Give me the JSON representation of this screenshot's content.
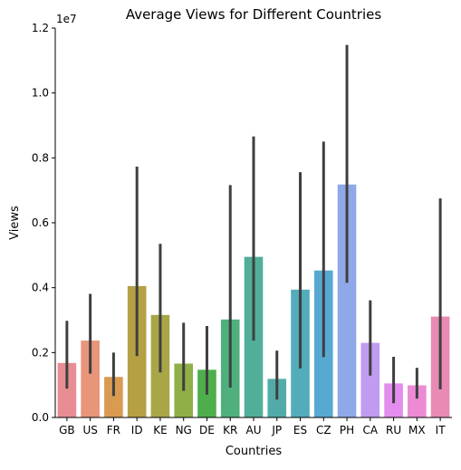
{
  "chart_data": {
    "type": "bar",
    "title": "Average Views for Different Countries",
    "xlabel": "Countries",
    "ylabel": "Views",
    "y_scale_label": "1e7",
    "ylim": [
      0,
      1.2
    ],
    "y_ticks": [
      "0.0",
      "0.2",
      "0.4",
      "0.6",
      "0.8",
      "1.0",
      "1.2"
    ],
    "y_tick_values": [
      0,
      0.2,
      0.4,
      0.6,
      0.8,
      1.0,
      1.2
    ],
    "grid": false,
    "categories": [
      "GB",
      "US",
      "FR",
      "ID",
      "KE",
      "NG",
      "DE",
      "KR",
      "AU",
      "JP",
      "ES",
      "CZ",
      "PH",
      "CA",
      "RU",
      "MX",
      "IT"
    ],
    "values": [
      0.168,
      0.237,
      0.125,
      0.405,
      0.316,
      0.166,
      0.147,
      0.302,
      0.495,
      0.119,
      0.394,
      0.453,
      0.718,
      0.23,
      0.105,
      0.099,
      0.311
    ],
    "error_low": [
      0.089,
      0.135,
      0.066,
      0.189,
      0.139,
      0.082,
      0.07,
      0.092,
      0.237,
      0.055,
      0.151,
      0.186,
      0.415,
      0.129,
      0.044,
      0.058,
      0.087
    ],
    "error_high": [
      0.298,
      0.381,
      0.2,
      0.773,
      0.535,
      0.292,
      0.282,
      0.716,
      0.866,
      0.206,
      0.756,
      0.85,
      1.148,
      0.361,
      0.187,
      0.153,
      0.675
    ],
    "colors": [
      "#e88d93",
      "#e8957a",
      "#d99a52",
      "#b5a044",
      "#a8a646",
      "#8fb046",
      "#4eae4c",
      "#4fb07d",
      "#51ae98",
      "#52aba9",
      "#53acba",
      "#57a9d2",
      "#8fa8e8",
      "#c09cf1",
      "#e58cef",
      "#ec8bd4",
      "#e98ab5"
    ],
    "error_bar_color": "#3f3f3f"
  }
}
